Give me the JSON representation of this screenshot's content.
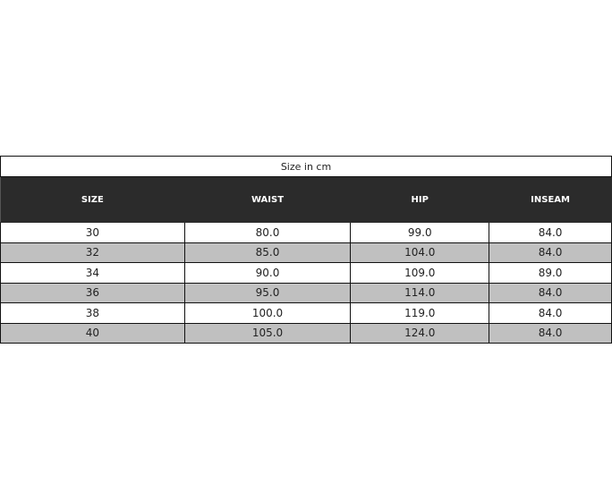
{
  "caption": "Size in cm",
  "columns": [
    "SIZE",
    "WAIST",
    "HIP",
    "INSEAM"
  ],
  "rows": [
    [
      "30",
      "80.0",
      "99.0",
      "84.0"
    ],
    [
      "32",
      "85.0",
      "104.0",
      "84.0"
    ],
    [
      "34",
      "90.0",
      "109.0",
      "89.0"
    ],
    [
      "36",
      "95.0",
      "114.0",
      "84.0"
    ],
    [
      "38",
      "100.0",
      "119.0",
      "84.0"
    ],
    [
      "40",
      "105.0",
      "124.0",
      "84.0"
    ]
  ],
  "colors": {
    "header_bg": "#2b2b2b",
    "alt_row_bg": "#c0c0c0"
  }
}
